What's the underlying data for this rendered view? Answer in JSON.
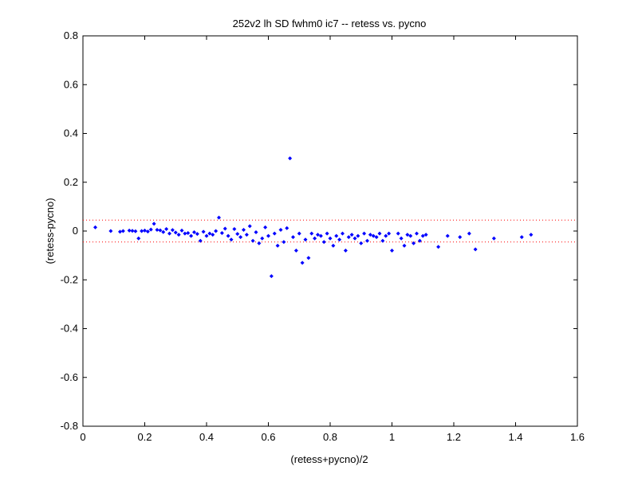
{
  "chart_data": {
    "type": "scatter",
    "title": "252v2 lh SD fwhm0 ic7 -- retess vs. pycno",
    "xlabel": "(retess+pycno)/2",
    "ylabel": "(retess-pycno)",
    "xlim": [
      0,
      1.6
    ],
    "ylim": [
      -0.8,
      0.8
    ],
    "xticks": [
      "0",
      "0.2",
      "0.4",
      "0.6",
      "0.8",
      "1",
      "1.2",
      "1.4",
      "1.6"
    ],
    "yticks": [
      "0.8",
      "0.6",
      "0.4",
      "0.2",
      "0",
      "-0.2",
      "-0.4",
      "-0.6",
      "-0.8"
    ],
    "xtick_values": [
      0,
      0.2,
      0.4,
      0.6,
      0.8,
      1.0,
      1.2,
      1.4,
      1.6
    ],
    "ytick_values": [
      0.8,
      0.6,
      0.4,
      0.2,
      0,
      -0.2,
      -0.4,
      -0.6,
      -0.8
    ],
    "grid": false,
    "reference_lines": [
      0.045,
      -0.045
    ],
    "colors": {
      "points": "#0000ff",
      "reference": "#ff0000",
      "axes": "#000000"
    },
    "points": [
      [
        0.04,
        0.015
      ],
      [
        0.09,
        0.0
      ],
      [
        0.12,
        -0.003
      ],
      [
        0.13,
        0.0
      ],
      [
        0.15,
        0.002
      ],
      [
        0.16,
        0.001
      ],
      [
        0.17,
        -0.001
      ],
      [
        0.18,
        -0.03
      ],
      [
        0.19,
        0.0
      ],
      [
        0.2,
        0.002
      ],
      [
        0.21,
        -0.002
      ],
      [
        0.22,
        0.006
      ],
      [
        0.23,
        0.03
      ],
      [
        0.24,
        0.005
      ],
      [
        0.25,
        0.003
      ],
      [
        0.26,
        -0.004
      ],
      [
        0.27,
        0.008
      ],
      [
        0.28,
        -0.01
      ],
      [
        0.29,
        0.004
      ],
      [
        0.3,
        -0.006
      ],
      [
        0.31,
        -0.015
      ],
      [
        0.32,
        0.002
      ],
      [
        0.33,
        -0.01
      ],
      [
        0.34,
        -0.008
      ],
      [
        0.35,
        -0.02
      ],
      [
        0.36,
        -0.005
      ],
      [
        0.37,
        -0.012
      ],
      [
        0.38,
        -0.04
      ],
      [
        0.39,
        -0.003
      ],
      [
        0.4,
        -0.02
      ],
      [
        0.41,
        -0.01
      ],
      [
        0.42,
        -0.015
      ],
      [
        0.43,
        0.0
      ],
      [
        0.44,
        0.055
      ],
      [
        0.45,
        -0.008
      ],
      [
        0.46,
        0.01
      ],
      [
        0.47,
        -0.02
      ],
      [
        0.48,
        -0.035
      ],
      [
        0.49,
        0.008
      ],
      [
        0.5,
        -0.012
      ],
      [
        0.51,
        -0.025
      ],
      [
        0.52,
        0.005
      ],
      [
        0.53,
        -0.015
      ],
      [
        0.54,
        0.02
      ],
      [
        0.55,
        -0.04
      ],
      [
        0.56,
        -0.005
      ],
      [
        0.57,
        -0.05
      ],
      [
        0.58,
        -0.03
      ],
      [
        0.59,
        0.015
      ],
      [
        0.6,
        -0.02
      ],
      [
        0.61,
        -0.185
      ],
      [
        0.62,
        -0.01
      ],
      [
        0.63,
        -0.06
      ],
      [
        0.64,
        0.005
      ],
      [
        0.65,
        -0.045
      ],
      [
        0.66,
        0.012
      ],
      [
        0.67,
        0.298
      ],
      [
        0.68,
        -0.025
      ],
      [
        0.69,
        -0.08
      ],
      [
        0.7,
        -0.01
      ],
      [
        0.71,
        -0.13
      ],
      [
        0.72,
        -0.035
      ],
      [
        0.73,
        -0.11
      ],
      [
        0.74,
        -0.01
      ],
      [
        0.75,
        -0.03
      ],
      [
        0.76,
        -0.015
      ],
      [
        0.77,
        -0.02
      ],
      [
        0.78,
        -0.045
      ],
      [
        0.79,
        -0.01
      ],
      [
        0.8,
        -0.03
      ],
      [
        0.81,
        -0.06
      ],
      [
        0.82,
        -0.02
      ],
      [
        0.83,
        -0.035
      ],
      [
        0.84,
        -0.01
      ],
      [
        0.85,
        -0.08
      ],
      [
        0.86,
        -0.025
      ],
      [
        0.87,
        -0.015
      ],
      [
        0.88,
        -0.03
      ],
      [
        0.89,
        -0.02
      ],
      [
        0.9,
        -0.05
      ],
      [
        0.91,
        -0.01
      ],
      [
        0.92,
        -0.04
      ],
      [
        0.93,
        -0.015
      ],
      [
        0.94,
        -0.02
      ],
      [
        0.95,
        -0.025
      ],
      [
        0.96,
        -0.01
      ],
      [
        0.97,
        -0.04
      ],
      [
        0.98,
        -0.02
      ],
      [
        0.99,
        -0.01
      ],
      [
        1.0,
        -0.08
      ],
      [
        1.02,
        -0.01
      ],
      [
        1.03,
        -0.03
      ],
      [
        1.04,
        -0.06
      ],
      [
        1.05,
        -0.015
      ],
      [
        1.06,
        -0.02
      ],
      [
        1.07,
        -0.05
      ],
      [
        1.08,
        -0.01
      ],
      [
        1.09,
        -0.04
      ],
      [
        1.1,
        -0.02
      ],
      [
        1.11,
        -0.015
      ],
      [
        1.15,
        -0.065
      ],
      [
        1.18,
        -0.02
      ],
      [
        1.22,
        -0.025
      ],
      [
        1.25,
        -0.01
      ],
      [
        1.27,
        -0.075
      ],
      [
        1.33,
        -0.03
      ],
      [
        1.42,
        -0.025
      ],
      [
        1.45,
        -0.015
      ]
    ]
  }
}
